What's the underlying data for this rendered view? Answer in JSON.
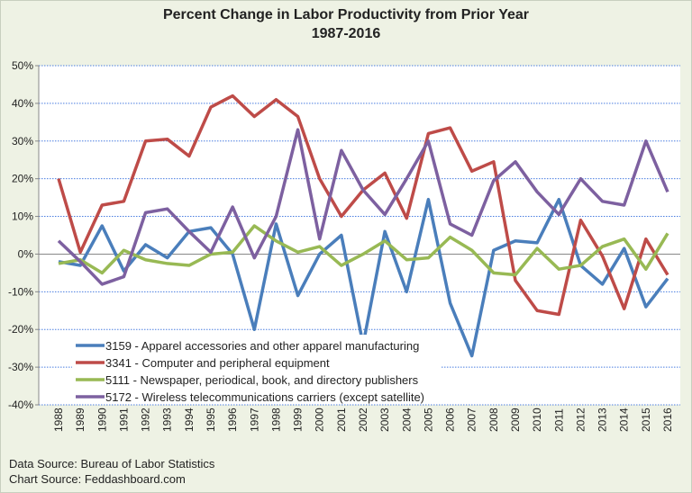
{
  "chart_data": {
    "type": "line",
    "title": "Percent Change in Labor Productivity from Prior Year",
    "subtitle": "1987-2016",
    "xlabel": "",
    "ylabel": "",
    "ylim": [
      -40,
      50
    ],
    "yticks": [
      "50%",
      "40%",
      "30%",
      "20%",
      "10%",
      "0%",
      "-10%",
      "-20%",
      "-30%",
      "-40%"
    ],
    "grid": true,
    "legend": "bottom-left",
    "categories": [
      "1988",
      "1989",
      "1990",
      "1991",
      "1992",
      "1993",
      "1994",
      "1995",
      "1996",
      "1997",
      "1998",
      "1999",
      "2000",
      "2001",
      "2002",
      "2003",
      "2004",
      "2005",
      "2006",
      "2007",
      "2008",
      "2009",
      "2010",
      "2011",
      "2012",
      "2013",
      "2014",
      "2015",
      "2016"
    ],
    "series": [
      {
        "name": "3159 - Apparel accessories and other apparel manufacturing",
        "color": "#4a7ebb",
        "values": [
          -2,
          -3,
          7.5,
          -4.5,
          2.5,
          -1,
          6,
          7,
          0,
          -20,
          8,
          -11,
          0,
          5,
          -24,
          6,
          -10,
          14.5,
          -13,
          -27,
          1,
          3.5,
          3,
          14.5,
          -3,
          -8,
          1.5,
          -14,
          -6.5
        ]
      },
      {
        "name": "3341 - Computer and peripheral equipment",
        "color": "#be4b48",
        "values": [
          20,
          0.5,
          13,
          14,
          30,
          30.5,
          26,
          39,
          42,
          36.5,
          41,
          36.5,
          20,
          10,
          17,
          21.5,
          9.5,
          32,
          33.5,
          22,
          24.5,
          -7,
          -15,
          -16,
          9,
          -0.5,
          -14.5,
          4,
          -5.5
        ]
      },
      {
        "name": "5111 - Newspaper, periodical, book, and directory publishers",
        "color": "#98b954",
        "values": [
          -2.5,
          -1.5,
          -5,
          1,
          -1.5,
          -2.5,
          -3,
          0,
          0.5,
          7.5,
          3.5,
          0.5,
          2,
          -3,
          0,
          3.5,
          -1.5,
          -1,
          4.5,
          1,
          -5,
          -5.5,
          1.5,
          -4,
          -3,
          2,
          4,
          -4,
          5.5
        ]
      },
      {
        "name": "5172 - Wireless telecommunications carriers (except satellite)",
        "color": "#7d60a0",
        "values": [
          3.5,
          -2,
          -8,
          -6,
          11,
          12,
          6,
          0.5,
          12.5,
          -1,
          10,
          33,
          4,
          27.5,
          17,
          10.5,
          20,
          30,
          8,
          5,
          19.5,
          24.5,
          16.5,
          10.5,
          20,
          14,
          13,
          30,
          16.5
        ]
      }
    ]
  },
  "footer": {
    "data_source": "Data Source: Bureau of Labor Statistics",
    "chart_source": "Chart Source: Feddashboard.com"
  }
}
